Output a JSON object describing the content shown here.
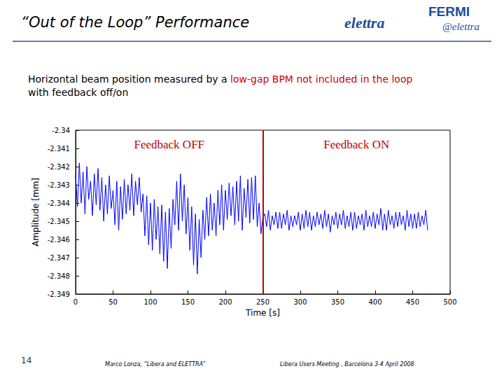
{
  "slide": {
    "title": "“Out of the Loop” Performance",
    "logos": [
      "elettra",
      "FERMI",
      "@elettra"
    ],
    "caption": [
      "Horizontal beam position measured by a ",
      "low-gap BPM not included in the loop",
      "with feedback off/on"
    ],
    "page_number": "14",
    "footer_left": "Marco Lonza, “Libera and ELETTRA”",
    "footer_right": "Libera Users Meeting , Barcelona 3-4 April 2008"
  },
  "chart_data": {
    "type": "line",
    "xlabel": "Time [s]",
    "ylabel": "Amplitude [mm]",
    "annotations": [
      "Feedback OFF",
      "Feedback ON"
    ],
    "switch_x": 250,
    "color": "#0000ff",
    "grid": false,
    "xlim": [
      0,
      500
    ],
    "xticks": [
      0,
      50,
      100,
      150,
      200,
      250,
      300,
      350,
      400,
      450,
      500
    ],
    "ylim": [
      -2.349,
      -2.34
    ],
    "yticks": [
      -2.349,
      -2.348,
      -2.347,
      -2.346,
      -2.345,
      -2.344,
      -2.343,
      -2.342,
      -2.341,
      -2.34
    ],
    "x": [
      0,
      2.5,
      5,
      7.5,
      10,
      12.5,
      15,
      17.5,
      20,
      22.5,
      25,
      27.5,
      30,
      32.5,
      35,
      37.5,
      40,
      42.5,
      45,
      47.5,
      50,
      52.5,
      55,
      57.5,
      60,
      62.5,
      65,
      67.5,
      70,
      72.5,
      75,
      77.5,
      80,
      82.5,
      85,
      87.5,
      90,
      92.5,
      95,
      97.5,
      100,
      102.5,
      105,
      107.5,
      110,
      112.5,
      115,
      117.5,
      120,
      122.5,
      125,
      127.5,
      130,
      132.5,
      135,
      137.5,
      140,
      142.5,
      145,
      147.5,
      150,
      152.5,
      155,
      157.5,
      160,
      162.5,
      165,
      167.5,
      170,
      172.5,
      175,
      177.5,
      180,
      182.5,
      185,
      187.5,
      190,
      192.5,
      195,
      197.5,
      200,
      202.5,
      205,
      207.5,
      210,
      212.5,
      215,
      217.5,
      220,
      222.5,
      225,
      227.5,
      230,
      232.5,
      235,
      237.5,
      240,
      242.5,
      245,
      247.5,
      250,
      252.5,
      255,
      257.5,
      260,
      262.5,
      265,
      267.5,
      270,
      272.5,
      275,
      277.5,
      280,
      282.5,
      285,
      287.5,
      290,
      292.5,
      295,
      297.5,
      300,
      302.5,
      305,
      307.5,
      310,
      312.5,
      315,
      317.5,
      320,
      322.5,
      325,
      327.5,
      330,
      332.5,
      335,
      337.5,
      340,
      342.5,
      345,
      347.5,
      350,
      352.5,
      355,
      357.5,
      360,
      362.5,
      365,
      367.5,
      370,
      372.5,
      375,
      377.5,
      380,
      382.5,
      385,
      387.5,
      390,
      392.5,
      395,
      397.5,
      400,
      402.5,
      405,
      407.5,
      410,
      412.5,
      415,
      417.5,
      420,
      422.5,
      425,
      427.5,
      430,
      432.5,
      435,
      437.5,
      440,
      442.5,
      445,
      447.5,
      450,
      452.5,
      455,
      457.5,
      460,
      462.5,
      465,
      467.5,
      470
    ],
    "values": [
      -2.3425,
      -2.3442,
      -2.3418,
      -2.344,
      -2.3423,
      -2.3446,
      -2.342,
      -2.3438,
      -2.3428,
      -2.3447,
      -2.3424,
      -2.3441,
      -2.3421,
      -2.3444,
      -2.3426,
      -2.345,
      -2.343,
      -2.3446,
      -2.3425,
      -2.3443,
      -2.3433,
      -2.3452,
      -2.3428,
      -2.3455,
      -2.3431,
      -2.3449,
      -2.3427,
      -2.3446,
      -2.343,
      -2.3444,
      -2.3424,
      -2.3447,
      -2.3428,
      -2.3441,
      -2.3426,
      -2.3445,
      -2.3435,
      -2.3458,
      -2.3436,
      -2.3463,
      -2.344,
      -2.3466,
      -2.3438,
      -2.346,
      -2.3442,
      -2.3468,
      -2.3441,
      -2.3472,
      -2.3445,
      -2.3476,
      -2.3443,
      -2.3465,
      -2.3438,
      -2.3452,
      -2.3428,
      -2.3455,
      -2.3424,
      -2.345,
      -2.343,
      -2.3457,
      -2.3437,
      -2.3466,
      -2.3442,
      -2.3474,
      -2.3446,
      -2.3479,
      -2.3449,
      -2.347,
      -2.3444,
      -2.346,
      -2.3437,
      -2.3458,
      -2.3435,
      -2.3455,
      -2.344,
      -2.3458,
      -2.3433,
      -2.3452,
      -2.343,
      -2.3455,
      -2.3433,
      -2.3449,
      -2.3429,
      -2.3447,
      -2.3431,
      -2.3452,
      -2.3428,
      -2.345,
      -2.3425,
      -2.3455,
      -2.3432,
      -2.3448,
      -2.3427,
      -2.3451,
      -2.3426,
      -2.3449,
      -2.3425,
      -2.3453,
      -2.344,
      -2.3457,
      -2.3448,
      -2.3446,
      -2.3453,
      -2.3444,
      -2.3455,
      -2.3447,
      -2.3452,
      -2.3445,
      -2.3454,
      -2.3445,
      -2.3454,
      -2.3446,
      -2.3452,
      -2.3444,
      -2.3455,
      -2.3447,
      -2.3453,
      -2.3447,
      -2.3452,
      -2.3445,
      -2.3455,
      -2.3446,
      -2.3454,
      -2.3444,
      -2.3453,
      -2.3445,
      -2.3455,
      -2.3447,
      -2.3453,
      -2.3445,
      -2.3452,
      -2.3446,
      -2.3454,
      -2.3444,
      -2.3453,
      -2.3446,
      -2.3456,
      -2.3447,
      -2.3452,
      -2.3445,
      -2.3454,
      -2.3446,
      -2.3452,
      -2.3444,
      -2.3454,
      -2.3447,
      -2.3453,
      -2.3445,
      -2.3455,
      -2.3445,
      -2.3454,
      -2.3447,
      -2.3452,
      -2.3446,
      -2.3455,
      -2.3444,
      -2.3453,
      -2.3447,
      -2.3453,
      -2.3445,
      -2.3454,
      -2.3446,
      -2.3452,
      -2.3443,
      -2.3455,
      -2.3446,
      -2.3455,
      -2.3444,
      -2.3452,
      -2.3447,
      -2.3454,
      -2.3445,
      -2.3453,
      -2.3445,
      -2.3452,
      -2.3447,
      -2.3455,
      -2.3444,
      -2.3453,
      -2.3446,
      -2.3454,
      -2.3446,
      -2.3454,
      -2.3445,
      -2.3453,
      -2.3447,
      -2.3452,
      -2.3444,
      -2.3455
    ]
  }
}
